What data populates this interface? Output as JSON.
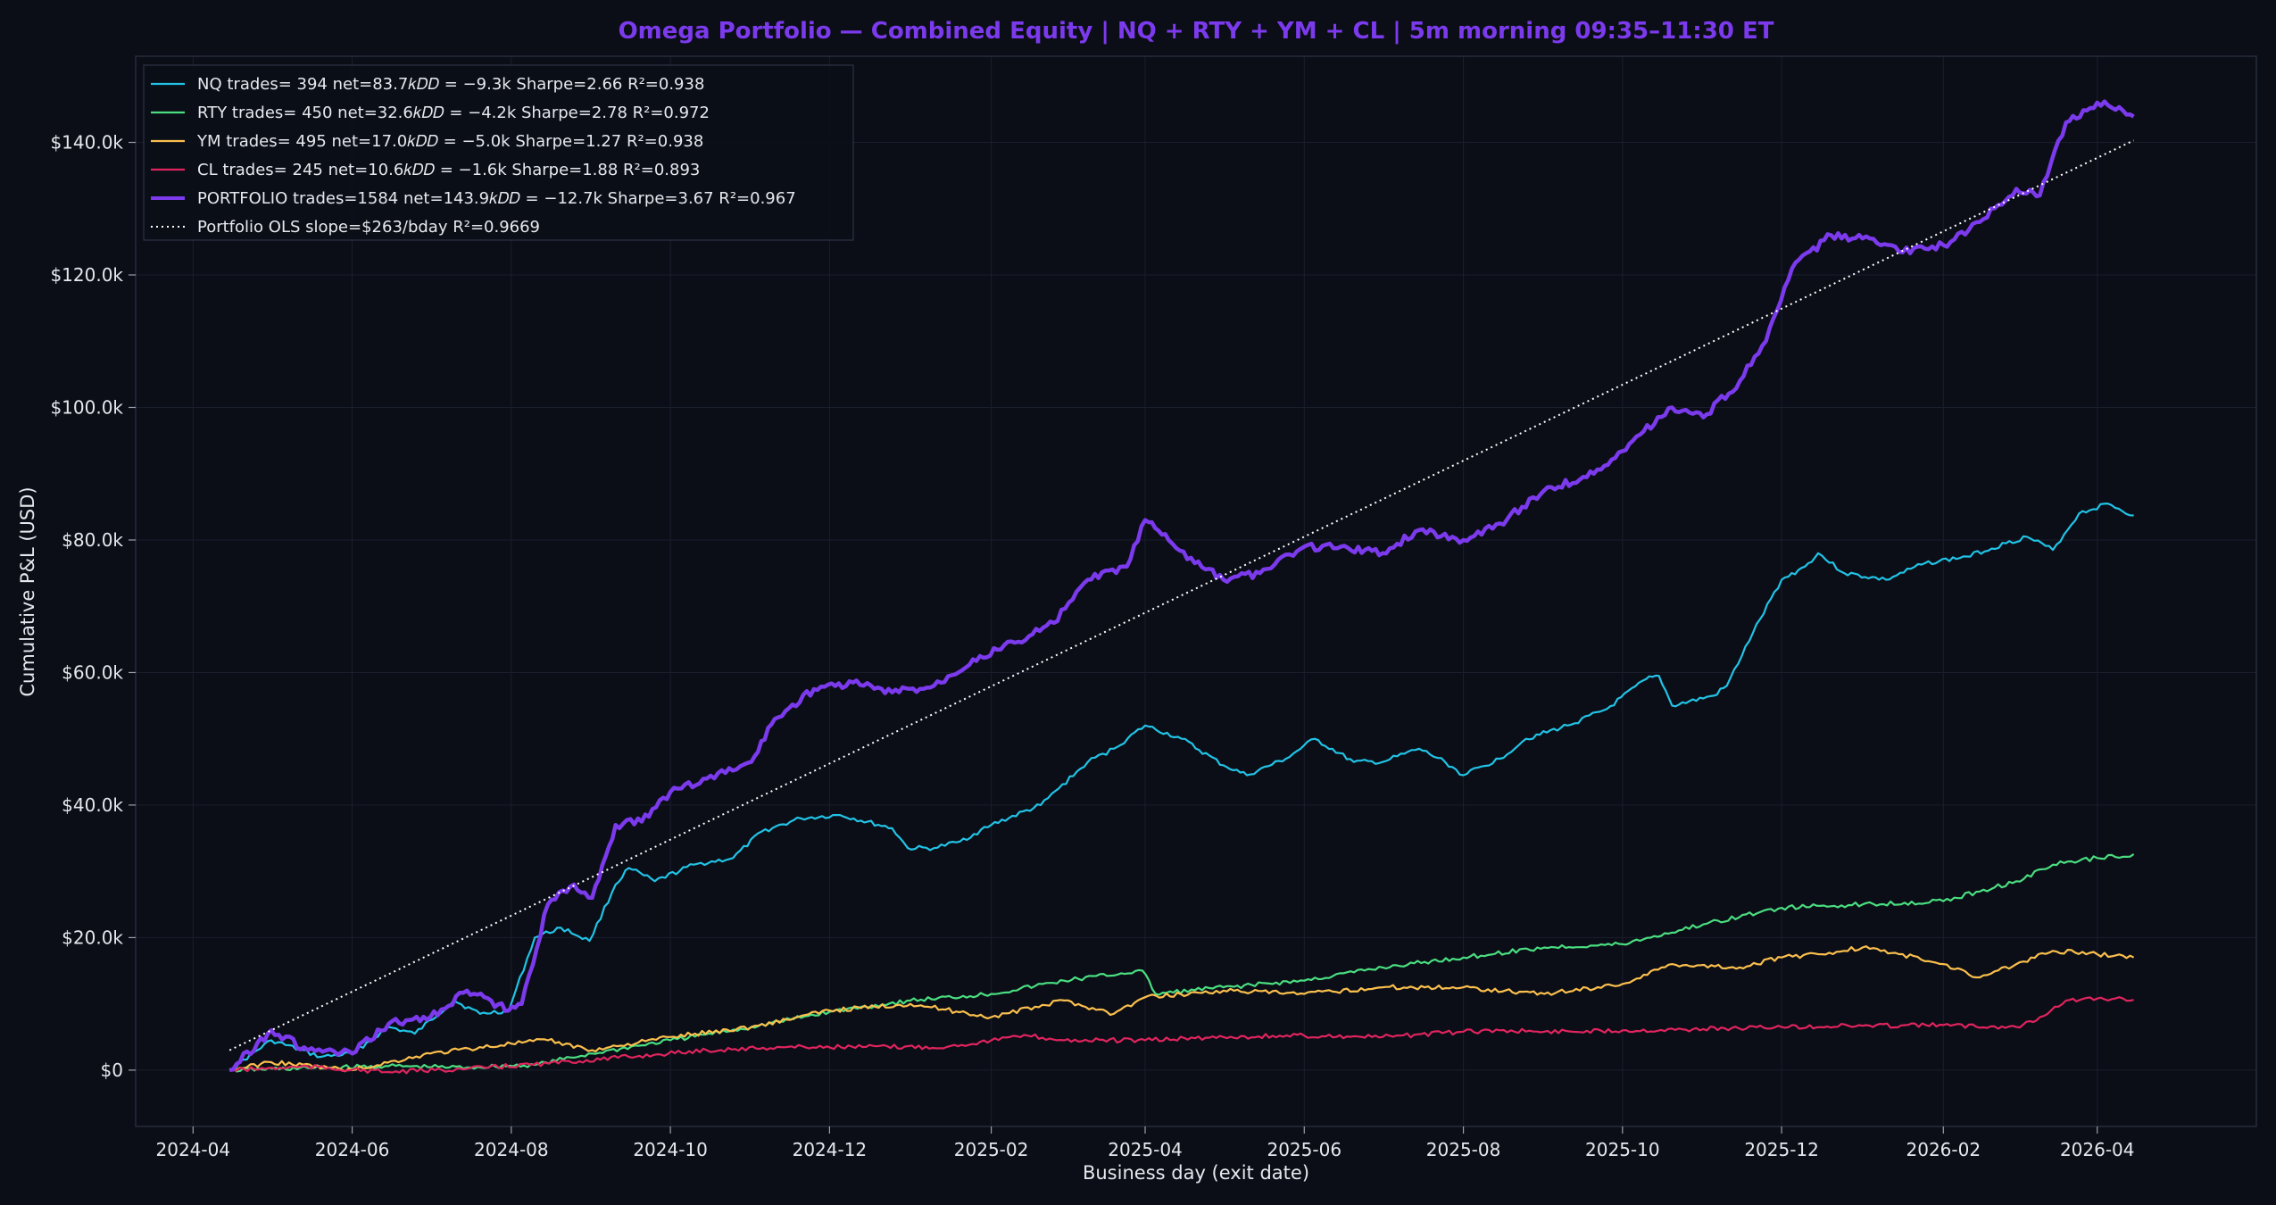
{
  "chart_data": {
    "type": "line",
    "title": "Omega Portfolio — Combined Equity  |  NQ + RTY + YM + CL  |  5m morning 09:35–11:30 ET",
    "xlabel": "Business day (exit date)",
    "ylabel": "Cumulative P&L (USD)",
    "xlim": [
      "2024-03-10",
      "2026-06-01"
    ],
    "ylim": [
      -8500,
      153000
    ],
    "x_ticks": [
      "2024-04",
      "2024-06",
      "2024-08",
      "2024-10",
      "2024-12",
      "2025-02",
      "2025-04",
      "2025-06",
      "2025-08",
      "2025-10",
      "2025-12",
      "2026-02",
      "2026-04"
    ],
    "y_ticks": [
      0,
      20000,
      40000,
      60000,
      80000,
      100000,
      120000,
      140000
    ],
    "y_tick_labels": [
      "$0",
      "$20.0k",
      "$40.0k",
      "$60.0k",
      "$80.0k",
      "$100.0k",
      "$120.0k",
      "$140.0k"
    ],
    "grid": true,
    "legend_position": "top-left",
    "colors": {
      "background": "#0b0e17",
      "title": "#7c3aed"
    },
    "series": [
      {
        "name": "NQ   trades= 394  net=83.7kDD=−9.3k  Sharpe=2.66  R²=0.938",
        "legend_label": "NQ   trades= 394  net=83.7𝑘𝐷𝐷 = −9.3k  Sharpe=2.66  R²=0.938",
        "color": "#22c3e6",
        "width": 2.2,
        "points": [
          [
            "2024-04-15",
            0
          ],
          [
            "2024-05-01",
            4500
          ],
          [
            "2024-05-20",
            2000
          ],
          [
            "2024-06-01",
            2500
          ],
          [
            "2024-06-15",
            6500
          ],
          [
            "2024-06-25",
            5500
          ],
          [
            "2024-07-10",
            10500
          ],
          [
            "2024-07-20",
            8500
          ],
          [
            "2024-07-31",
            9000
          ],
          [
            "2024-08-10",
            20000
          ],
          [
            "2024-08-20",
            21500
          ],
          [
            "2024-08-31",
            19500
          ],
          [
            "2024-09-10",
            28000
          ],
          [
            "2024-09-15",
            30500
          ],
          [
            "2024-09-25",
            28500
          ],
          [
            "2024-10-10",
            31000
          ],
          [
            "2024-10-25",
            32000
          ],
          [
            "2024-11-05",
            36000
          ],
          [
            "2024-11-20",
            38000
          ],
          [
            "2024-12-05",
            38500
          ],
          [
            "2024-12-25",
            36500
          ],
          [
            "2024-12-31",
            33500
          ],
          [
            "2025-01-10",
            33500
          ],
          [
            "2025-01-20",
            34500
          ],
          [
            "2025-02-01",
            37000
          ],
          [
            "2025-02-20",
            40000
          ],
          [
            "2025-03-10",
            46500
          ],
          [
            "2025-03-20",
            48500
          ],
          [
            "2025-04-01",
            52000
          ],
          [
            "2025-04-15",
            50000
          ],
          [
            "2025-05-01",
            46000
          ],
          [
            "2025-05-10",
            44500
          ],
          [
            "2025-05-25",
            47000
          ],
          [
            "2025-06-05",
            50000
          ],
          [
            "2025-06-20",
            46500
          ],
          [
            "2025-07-01",
            46500
          ],
          [
            "2025-07-15",
            48500
          ],
          [
            "2025-07-25",
            46500
          ],
          [
            "2025-08-01",
            44500
          ],
          [
            "2025-08-15",
            47000
          ],
          [
            "2025-08-25",
            50000
          ],
          [
            "2025-09-10",
            52000
          ],
          [
            "2025-09-25",
            54500
          ],
          [
            "2025-10-10",
            59000
          ],
          [
            "2025-10-15",
            59500
          ],
          [
            "2025-10-20",
            55000
          ],
          [
            "2025-11-05",
            56500
          ],
          [
            "2025-11-10",
            58000
          ],
          [
            "2025-11-20",
            66000
          ],
          [
            "2025-12-01",
            74000
          ],
          [
            "2025-12-10",
            76000
          ],
          [
            "2025-12-15",
            78000
          ],
          [
            "2025-12-25",
            75000
          ],
          [
            "2026-01-10",
            74000
          ],
          [
            "2026-01-25",
            76500
          ],
          [
            "2026-02-10",
            77500
          ],
          [
            "2026-02-25",
            79500
          ],
          [
            "2026-03-05",
            80500
          ],
          [
            "2026-03-15",
            78500
          ],
          [
            "2026-03-25",
            84000
          ],
          [
            "2026-04-05",
            85500
          ],
          [
            "2026-04-15",
            83700
          ]
        ]
      },
      {
        "name": "RTY  trades= 450  net=32.6kDD=−4.2k  Sharpe=2.78  R²=0.972",
        "legend_label": "RTY  trades= 450  net=32.6𝑘𝐷𝐷 = −4.2k  Sharpe=2.78  R²=0.972",
        "color": "#4ade80",
        "width": 2.2,
        "points": [
          [
            "2024-04-15",
            0
          ],
          [
            "2024-05-15",
            300
          ],
          [
            "2024-06-15",
            600
          ],
          [
            "2024-07-15",
            400
          ],
          [
            "2024-08-10",
            800
          ],
          [
            "2024-09-01",
            2500
          ],
          [
            "2024-10-01",
            4500
          ],
          [
            "2024-11-01",
            6500
          ],
          [
            "2024-12-01",
            8800
          ],
          [
            "2025-01-01",
            10500
          ],
          [
            "2025-02-01",
            11500
          ],
          [
            "2025-03-01",
            13500
          ],
          [
            "2025-03-31",
            15000
          ],
          [
            "2025-04-05",
            11500
          ],
          [
            "2025-05-01",
            12500
          ],
          [
            "2025-06-01",
            13500
          ],
          [
            "2025-07-01",
            15500
          ],
          [
            "2025-08-01",
            17000
          ],
          [
            "2025-09-01",
            18500
          ],
          [
            "2025-10-01",
            19000
          ],
          [
            "2025-11-01",
            22000
          ],
          [
            "2025-12-01",
            24500
          ],
          [
            "2026-01-01",
            25000
          ],
          [
            "2026-02-01",
            25500
          ],
          [
            "2026-03-01",
            28500
          ],
          [
            "2026-03-15",
            31000
          ],
          [
            "2026-04-01",
            32000
          ],
          [
            "2026-04-15",
            32600
          ]
        ]
      },
      {
        "name": "YM   trades= 495  net=17.0kDD=−5.0k  Sharpe=1.27  R²=0.938",
        "legend_label": "YM   trades= 495  net=17.0𝑘𝐷𝐷 = −5.0k  Sharpe=1.27  R²=0.938",
        "color": "#fbbf4d",
        "width": 2.2,
        "points": [
          [
            "2024-04-15",
            0
          ],
          [
            "2024-05-01",
            1200
          ],
          [
            "2024-06-01",
            0
          ],
          [
            "2024-07-01",
            2500
          ],
          [
            "2024-08-01",
            4000
          ],
          [
            "2024-08-15",
            4500
          ],
          [
            "2024-09-01",
            3000
          ],
          [
            "2024-10-01",
            5000
          ],
          [
            "2024-11-01",
            6500
          ],
          [
            "2024-12-01",
            9000
          ],
          [
            "2025-01-01",
            10000
          ],
          [
            "2025-02-01",
            8000
          ],
          [
            "2025-03-01",
            10500
          ],
          [
            "2025-03-20",
            8500
          ],
          [
            "2025-04-01",
            11000
          ],
          [
            "2025-05-01",
            12000
          ],
          [
            "2025-06-01",
            11500
          ],
          [
            "2025-07-01",
            12500
          ],
          [
            "2025-08-01",
            12500
          ],
          [
            "2025-09-01",
            11500
          ],
          [
            "2025-10-01",
            13000
          ],
          [
            "2025-10-20",
            16000
          ],
          [
            "2025-11-15",
            15500
          ],
          [
            "2025-12-01",
            17000
          ],
          [
            "2025-12-15",
            17500
          ],
          [
            "2026-01-01",
            18500
          ],
          [
            "2026-01-15",
            17500
          ],
          [
            "2026-02-01",
            16000
          ],
          [
            "2026-02-15",
            14000
          ],
          [
            "2026-03-01",
            16000
          ],
          [
            "2026-03-15",
            18000
          ],
          [
            "2026-04-01",
            17500
          ],
          [
            "2026-04-15",
            17000
          ]
        ]
      },
      {
        "name": "CL   trades= 245  net=10.6kDD=−1.6k  Sharpe=1.88  R²=0.893",
        "legend_label": "CL   trades= 245  net=10.6𝑘𝐷𝐷 = −1.6k  Sharpe=1.88  R²=0.893",
        "color": "#e0245e",
        "width": 2.2,
        "points": [
          [
            "2024-04-15",
            0
          ],
          [
            "2024-05-15",
            500
          ],
          [
            "2024-06-15",
            -300
          ],
          [
            "2024-07-15",
            200
          ],
          [
            "2024-08-15",
            1000
          ],
          [
            "2024-09-15",
            2000
          ],
          [
            "2024-10-15",
            3000
          ],
          [
            "2024-11-15",
            3500
          ],
          [
            "2024-12-15",
            3500
          ],
          [
            "2025-01-15",
            3500
          ],
          [
            "2025-02-01",
            4500
          ],
          [
            "2025-02-15",
            5200
          ],
          [
            "2025-03-01",
            4500
          ],
          [
            "2025-04-01",
            4500
          ],
          [
            "2025-05-01",
            5000
          ],
          [
            "2025-06-01",
            5200
          ],
          [
            "2025-07-01",
            5000
          ],
          [
            "2025-08-01",
            5800
          ],
          [
            "2025-08-15",
            6000
          ],
          [
            "2025-09-01",
            5800
          ],
          [
            "2025-10-01",
            6000
          ],
          [
            "2025-11-01",
            6200
          ],
          [
            "2025-12-01",
            6500
          ],
          [
            "2026-01-01",
            6700
          ],
          [
            "2026-02-01",
            6800
          ],
          [
            "2026-03-01",
            6500
          ],
          [
            "2026-03-10",
            8000
          ],
          [
            "2026-03-20",
            10500
          ],
          [
            "2026-04-01",
            10800
          ],
          [
            "2026-04-15",
            10600
          ]
        ]
      },
      {
        "name": "PORTFOLIO  trades=1584  net=143.9kDD=−12.7k  Sharpe=3.67  R²=0.967",
        "legend_label": "PORTFOLIO  trades=1584  net=143.9𝑘𝐷𝐷 = −12.7k  Sharpe=3.67  R²=0.967",
        "color": "#7c3aed",
        "width": 4.5,
        "points": [
          [
            "2024-04-15",
            0
          ],
          [
            "2024-05-01",
            6000
          ],
          [
            "2024-05-15",
            3000
          ],
          [
            "2024-06-01",
            2500
          ],
          [
            "2024-06-15",
            7000
          ],
          [
            "2024-07-01",
            8000
          ],
          [
            "2024-07-15",
            12000
          ],
          [
            "2024-07-31",
            9000
          ],
          [
            "2024-08-05",
            10000
          ],
          [
            "2024-08-15",
            25000
          ],
          [
            "2024-08-25",
            28000
          ],
          [
            "2024-09-01",
            26000
          ],
          [
            "2024-09-10",
            37000
          ],
          [
            "2024-09-20",
            37500
          ],
          [
            "2024-10-01",
            42000
          ],
          [
            "2024-10-15",
            44000
          ],
          [
            "2024-11-01",
            46500
          ],
          [
            "2024-11-10",
            53000
          ],
          [
            "2024-11-25",
            57500
          ],
          [
            "2024-12-10",
            58500
          ],
          [
            "2024-12-25",
            57000
          ],
          [
            "2025-01-10",
            58000
          ],
          [
            "2025-01-25",
            62000
          ],
          [
            "2025-02-10",
            64500
          ],
          [
            "2025-02-25",
            67500
          ],
          [
            "2025-03-10",
            74000
          ],
          [
            "2025-03-25",
            76000
          ],
          [
            "2025-04-01",
            83000
          ],
          [
            "2025-04-10",
            80000
          ],
          [
            "2025-04-20",
            76500
          ],
          [
            "2025-05-01",
            74000
          ],
          [
            "2025-05-15",
            75000
          ],
          [
            "2025-06-01",
            79000
          ],
          [
            "2025-06-15",
            79000
          ],
          [
            "2025-07-01",
            78000
          ],
          [
            "2025-07-15",
            81500
          ],
          [
            "2025-08-01",
            80000
          ],
          [
            "2025-08-15",
            82500
          ],
          [
            "2025-09-01",
            87500
          ],
          [
            "2025-09-20",
            90000
          ],
          [
            "2025-10-05",
            95000
          ],
          [
            "2025-10-20",
            100000
          ],
          [
            "2025-11-01",
            98500
          ],
          [
            "2025-11-15",
            104000
          ],
          [
            "2025-11-25",
            110000
          ],
          [
            "2025-12-05",
            121000
          ],
          [
            "2025-12-20",
            126000
          ],
          [
            "2026-01-01",
            125500
          ],
          [
            "2026-01-15",
            123500
          ],
          [
            "2026-02-01",
            124500
          ],
          [
            "2026-02-15",
            128000
          ],
          [
            "2026-03-01",
            133000
          ],
          [
            "2026-03-10",
            132000
          ],
          [
            "2026-03-20",
            143000
          ],
          [
            "2026-04-01",
            146000
          ],
          [
            "2026-04-15",
            143900
          ]
        ]
      },
      {
        "name": "Portfolio OLS  slope=$263/bday  R²=0.9669",
        "legend_label": "Portfolio OLS  slope=$263/bday  R²=0.9669",
        "color": "#ffffff",
        "width": 2,
        "dash": "2,4",
        "points": [
          [
            "2024-04-15",
            3000
          ],
          [
            "2026-04-15",
            140300
          ]
        ]
      }
    ]
  }
}
